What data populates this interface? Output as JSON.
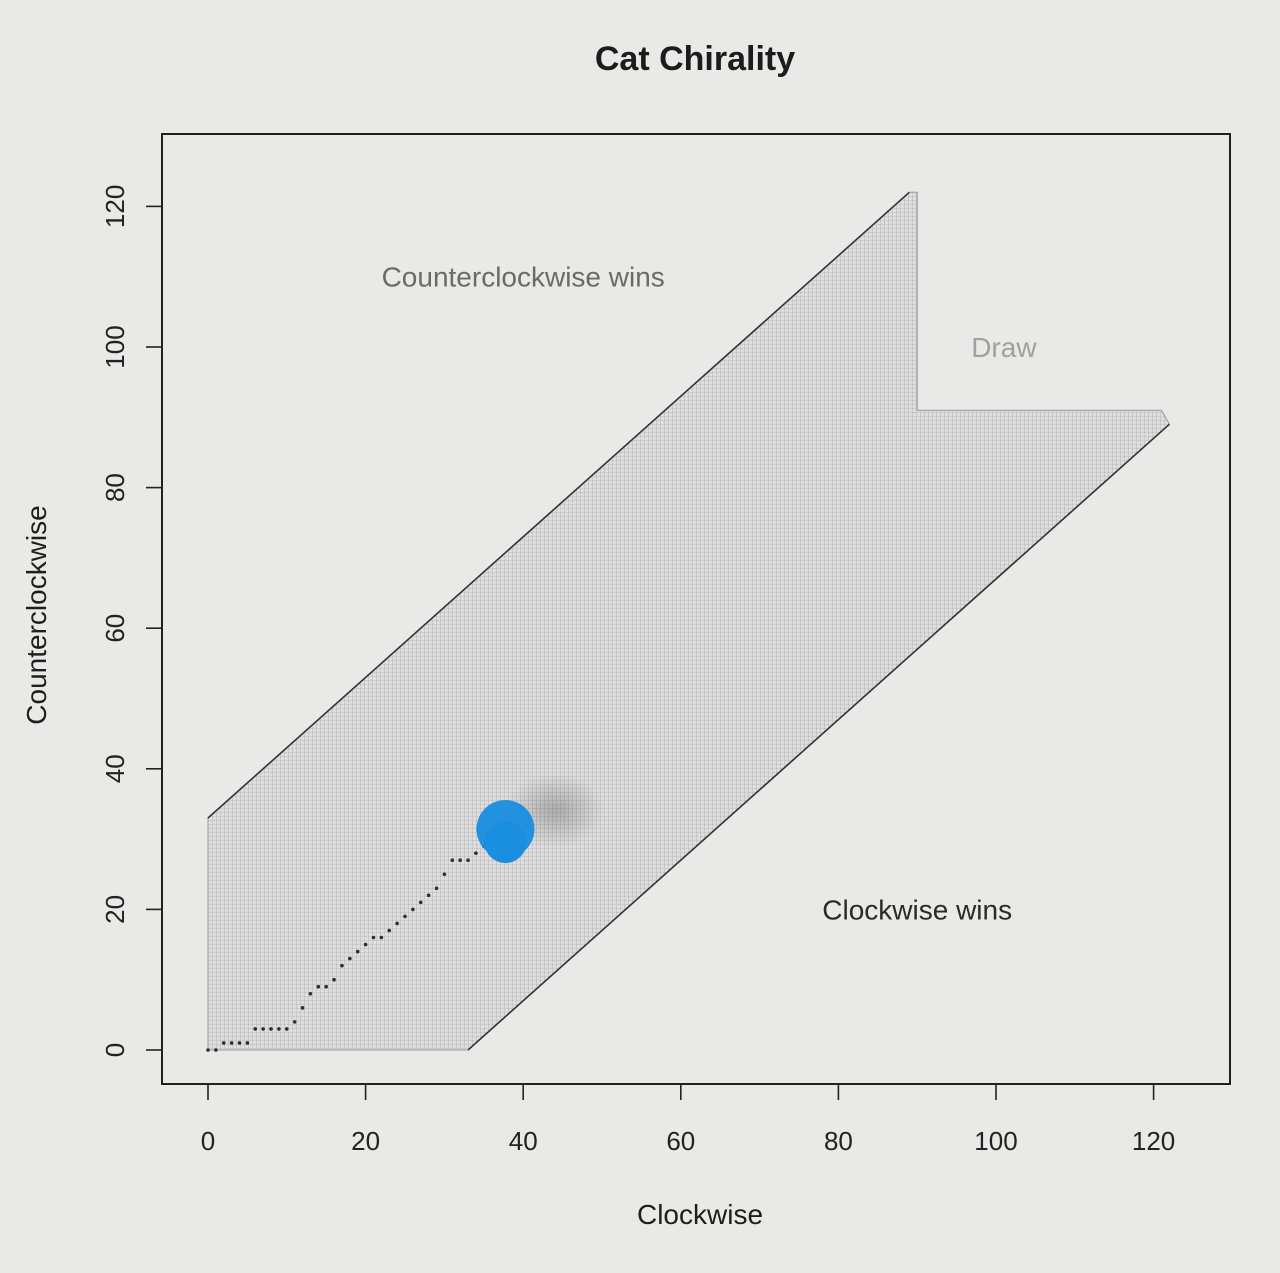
{
  "chart_data": {
    "type": "scatter",
    "title": "Cat Chirality",
    "xlabel": "Clockwise",
    "ylabel": "Counterclockwise",
    "xlim": [
      -5,
      130
    ],
    "ylim": [
      -5,
      130
    ],
    "xticks": [
      0,
      20,
      40,
      60,
      80,
      100,
      120
    ],
    "yticks": [
      0,
      20,
      40,
      60,
      80,
      100,
      120
    ],
    "regions": [
      {
        "label": "Counterclockwise wins",
        "x": 40,
        "y": 110,
        "color": "#6a6a6a"
      },
      {
        "label": "Draw",
        "x": 101,
        "y": 100,
        "color": "#a0a0a0"
      },
      {
        "label": "Clockwise wins",
        "x": 90,
        "y": 20,
        "color": "#2a2a2a"
      }
    ],
    "play_region": [
      [
        0,
        0
      ],
      [
        0,
        33
      ],
      [
        89,
        122
      ],
      [
        90,
        122
      ],
      [
        90,
        91
      ],
      [
        121,
        91
      ],
      [
        122,
        89
      ],
      [
        33,
        0
      ]
    ],
    "boundary_lines": [
      {
        "x": [
          0,
          89
        ],
        "y": [
          33,
          122
        ]
      },
      {
        "x": [
          33,
          122
        ],
        "y": [
          0,
          89
        ]
      }
    ],
    "series": [
      {
        "x": [
          0,
          1,
          2,
          3,
          4,
          5,
          6,
          7,
          8,
          9,
          10,
          11,
          12,
          13,
          14,
          15,
          16,
          17,
          18,
          19,
          20,
          21,
          22,
          23,
          24,
          25,
          26,
          27,
          28,
          29,
          30,
          31,
          32,
          33,
          34,
          35,
          36,
          37
        ],
        "y": [
          0,
          0,
          1,
          1,
          1,
          1,
          3,
          3,
          3,
          3,
          3,
          4,
          6,
          8,
          9,
          9,
          10,
          12,
          13,
          14,
          15,
          16,
          16,
          17,
          18,
          19,
          20,
          21,
          22,
          23,
          25,
          27,
          27,
          27,
          28,
          29,
          30,
          31
        ]
      }
    ],
    "marker": {
      "x": 38,
      "y": 31,
      "color": "#1a8fe0"
    }
  }
}
